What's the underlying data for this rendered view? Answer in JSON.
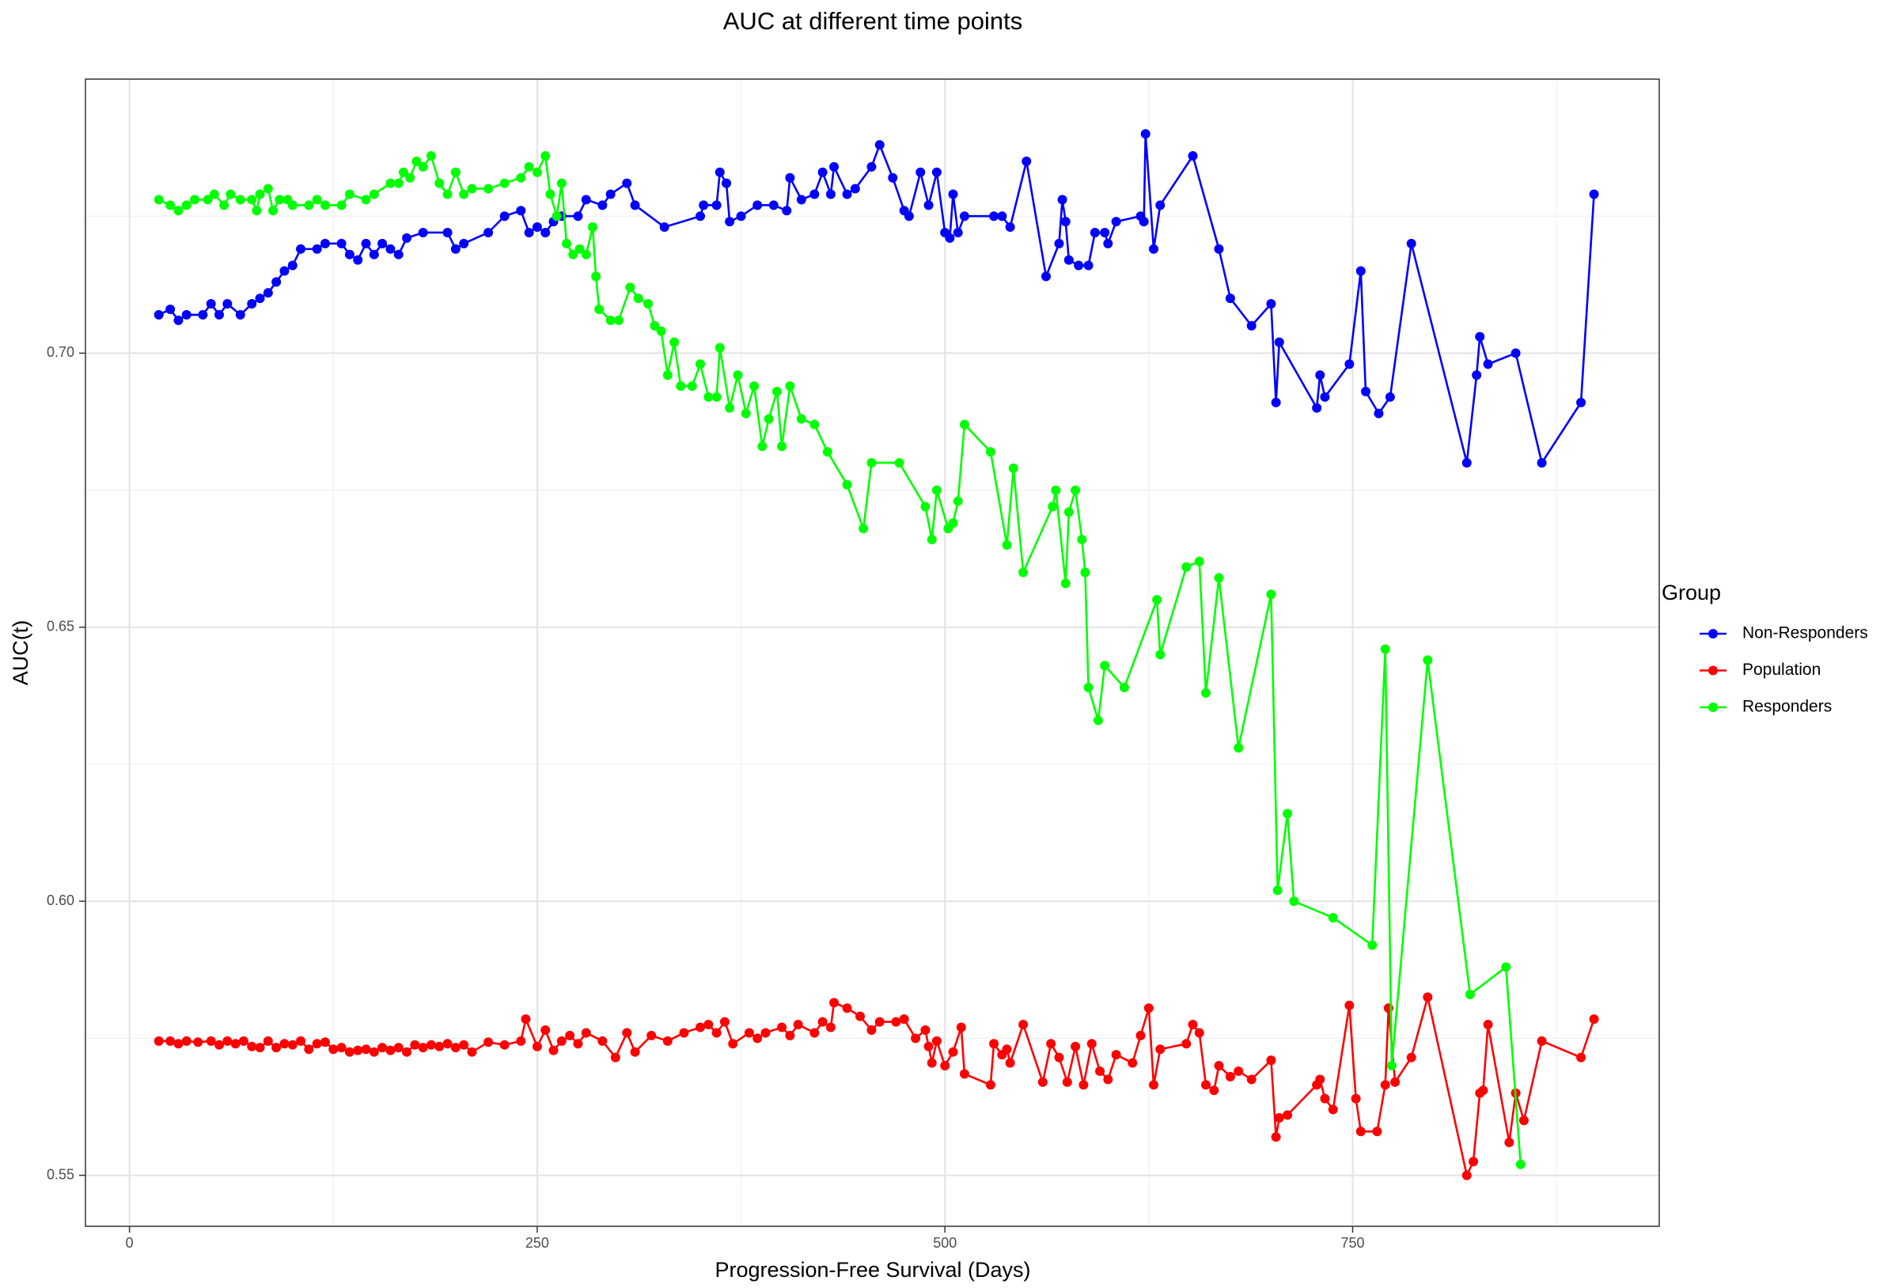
{
  "chart_data": {
    "type": "line",
    "title": "AUC at different time points",
    "xlabel": "Progression-Free Survival (Days)",
    "ylabel": "AUC(t)",
    "legend_title": "Group",
    "legend": "right",
    "grid": true,
    "markers": true,
    "xlim": [
      -27,
      938
    ],
    "ylim": [
      0.5407,
      0.75
    ],
    "xticks": [
      0,
      250,
      500,
      750
    ],
    "yticks": [
      0.55,
      {
        "value": 0.6,
        "label": "0.60"
      },
      0.65,
      {
        "value": 0.7,
        "label": "0.70"
      }
    ],
    "xminor": [
      125,
      375,
      625,
      875
    ],
    "yminor": [
      0.575,
      0.625,
      0.675,
      0.725
    ],
    "series": [
      {
        "name": "Non-Responders",
        "color": "#0000ff",
        "x": [
          18,
          25,
          30,
          35,
          45,
          50,
          55,
          60,
          68,
          75,
          80,
          85,
          90,
          95,
          100,
          105,
          115,
          120,
          130,
          135,
          140,
          145,
          150,
          155,
          160,
          165,
          170,
          180,
          195,
          200,
          205,
          220,
          230,
          240,
          245,
          250,
          255,
          260,
          265,
          275,
          280,
          290,
          295,
          305,
          310,
          328,
          350,
          352,
          360,
          362,
          366,
          368,
          375,
          385,
          395,
          403,
          405,
          412,
          420,
          425,
          430,
          432,
          440,
          445,
          455,
          460,
          468,
          475,
          478,
          485,
          490,
          495,
          500,
          503,
          505,
          508,
          512,
          530,
          535,
          540,
          550,
          562,
          570,
          572,
          574,
          576,
          582,
          588,
          592,
          598,
          600,
          605,
          620,
          622,
          623,
          628,
          632,
          652,
          668,
          675,
          688,
          700,
          703,
          705,
          728,
          730,
          733,
          748,
          755,
          758,
          766,
          773,
          786,
          820,
          826,
          828,
          833,
          850,
          866,
          890,
          898
        ],
        "values": [
          0.707,
          0.708,
          0.706,
          0.707,
          0.707,
          0.709,
          0.707,
          0.709,
          0.707,
          0.709,
          0.71,
          0.711,
          0.713,
          0.715,
          0.716,
          0.719,
          0.719,
          0.72,
          0.72,
          0.718,
          0.717,
          0.72,
          0.718,
          0.72,
          0.719,
          0.718,
          0.721,
          0.722,
          0.722,
          0.719,
          0.72,
          0.722,
          0.725,
          0.726,
          0.722,
          0.723,
          0.722,
          0.724,
          0.725,
          0.725,
          0.728,
          0.727,
          0.729,
          0.731,
          0.727,
          0.723,
          0.725,
          0.727,
          0.727,
          0.733,
          0.731,
          0.724,
          0.725,
          0.727,
          0.727,
          0.726,
          0.732,
          0.728,
          0.729,
          0.733,
          0.729,
          0.734,
          0.729,
          0.73,
          0.734,
          0.738,
          0.732,
          0.726,
          0.725,
          0.733,
          0.727,
          0.733,
          0.722,
          0.721,
          0.729,
          0.722,
          0.725,
          0.725,
          0.725,
          0.723,
          0.735,
          0.714,
          0.72,
          0.728,
          0.724,
          0.717,
          0.716,
          0.716,
          0.722,
          0.722,
          0.72,
          0.724,
          0.725,
          0.724,
          0.74,
          0.719,
          0.727,
          0.736,
          0.719,
          0.71,
          0.705,
          0.709,
          0.691,
          0.702,
          0.69,
          0.696,
          0.692,
          0.698,
          0.715,
          0.693,
          0.689,
          0.692,
          0.72,
          0.68,
          0.696,
          0.703,
          0.698,
          0.7,
          0.68,
          0.691,
          0.729
        ]
      },
      {
        "name": "Population",
        "color": "#ff0000",
        "x": [
          18,
          25,
          30,
          35,
          42,
          50,
          55,
          60,
          65,
          70,
          75,
          80,
          85,
          90,
          95,
          100,
          105,
          110,
          115,
          120,
          125,
          130,
          135,
          140,
          145,
          150,
          155,
          160,
          165,
          170,
          175,
          180,
          185,
          190,
          195,
          200,
          205,
          210,
          220,
          230,
          240,
          243,
          250,
          255,
          260,
          265,
          270,
          275,
          280,
          290,
          298,
          305,
          310,
          320,
          330,
          340,
          350,
          355,
          360,
          365,
          370,
          380,
          385,
          390,
          400,
          405,
          410,
          420,
          425,
          430,
          432,
          440,
          448,
          455,
          460,
          470,
          475,
          482,
          488,
          490,
          492,
          495,
          500,
          505,
          510,
          512,
          528,
          530,
          535,
          538,
          540,
          548,
          560,
          565,
          570,
          575,
          580,
          585,
          590,
          595,
          600,
          605,
          615,
          620,
          625,
          628,
          632,
          648,
          652,
          656,
          660,
          665,
          668,
          675,
          680,
          688,
          700,
          703,
          705,
          710,
          728,
          730,
          733,
          738,
          748,
          752,
          755,
          765,
          770,
          772,
          776,
          786,
          796,
          820,
          824,
          828,
          830,
          833,
          846,
          850,
          855,
          866,
          890,
          898
        ],
        "values": [
          0.5745,
          0.5745,
          0.574,
          0.5745,
          0.5743,
          0.5745,
          0.5738,
          0.5745,
          0.574,
          0.5745,
          0.5735,
          0.5733,
          0.5745,
          0.5733,
          0.574,
          0.5738,
          0.5745,
          0.573,
          0.574,
          0.5743,
          0.573,
          0.5733,
          0.5725,
          0.5728,
          0.573,
          0.5725,
          0.5733,
          0.5728,
          0.5733,
          0.5725,
          0.5738,
          0.5733,
          0.5738,
          0.5735,
          0.574,
          0.5733,
          0.5738,
          0.5725,
          0.5743,
          0.5738,
          0.5745,
          0.5785,
          0.5735,
          0.5765,
          0.5728,
          0.5745,
          0.5755,
          0.574,
          0.576,
          0.5745,
          0.5715,
          0.576,
          0.5725,
          0.5755,
          0.5745,
          0.576,
          0.577,
          0.5775,
          0.576,
          0.578,
          0.574,
          0.576,
          0.575,
          0.576,
          0.577,
          0.5755,
          0.5775,
          0.576,
          0.578,
          0.577,
          0.5815,
          0.5805,
          0.579,
          0.5765,
          0.578,
          0.578,
          0.5785,
          0.575,
          0.5765,
          0.5735,
          0.5705,
          0.5745,
          0.57,
          0.5725,
          0.577,
          0.5685,
          0.5665,
          0.574,
          0.572,
          0.573,
          0.5705,
          0.5775,
          0.567,
          0.574,
          0.5715,
          0.567,
          0.5735,
          0.5665,
          0.574,
          0.569,
          0.5675,
          0.572,
          0.5705,
          0.5755,
          0.5805,
          0.5665,
          0.573,
          0.574,
          0.5775,
          0.576,
          0.5665,
          0.5655,
          0.57,
          0.568,
          0.569,
          0.5675,
          0.571,
          0.557,
          0.5605,
          0.561,
          0.5665,
          0.5675,
          0.564,
          0.562,
          0.581,
          0.564,
          0.558,
          0.558,
          0.5665,
          0.5805,
          0.567,
          0.5715,
          0.5825,
          0.55,
          0.5525,
          0.565,
          0.5655,
          0.5775,
          0.556,
          0.565,
          0.56,
          0.5745,
          0.5715,
          0.5785
        ]
      },
      {
        "name": "Responders",
        "color": "#00ff00",
        "x": [
          18,
          25,
          30,
          35,
          40,
          48,
          52,
          58,
          62,
          68,
          75,
          78,
          80,
          85,
          88,
          92,
          97,
          100,
          110,
          115,
          120,
          130,
          135,
          145,
          150,
          160,
          165,
          168,
          172,
          176,
          180,
          185,
          190,
          195,
          200,
          205,
          210,
          220,
          230,
          240,
          245,
          250,
          255,
          258,
          262,
          265,
          268,
          272,
          276,
          280,
          284,
          286,
          288,
          295,
          300,
          307,
          312,
          318,
          322,
          326,
          330,
          334,
          338,
          345,
          350,
          355,
          360,
          362,
          368,
          373,
          378,
          383,
          388,
          392,
          397,
          400,
          405,
          412,
          420,
          428,
          440,
          450,
          455,
          472,
          488,
          492,
          495,
          502,
          505,
          508,
          512,
          528,
          538,
          542,
          548,
          566,
          568,
          574,
          576,
          580,
          584,
          586,
          588,
          594,
          598,
          610,
          630,
          632,
          648,
          656,
          660,
          668,
          680,
          700,
          704,
          710,
          714,
          738,
          762,
          770,
          774,
          796,
          822,
          844,
          853
        ],
        "values": [
          0.728,
          0.727,
          0.726,
          0.727,
          0.728,
          0.728,
          0.729,
          0.727,
          0.729,
          0.728,
          0.728,
          0.726,
          0.729,
          0.73,
          0.726,
          0.728,
          0.728,
          0.727,
          0.727,
          0.728,
          0.727,
          0.727,
          0.729,
          0.728,
          0.729,
          0.731,
          0.731,
          0.733,
          0.732,
          0.735,
          0.734,
          0.736,
          0.731,
          0.729,
          0.733,
          0.729,
          0.73,
          0.73,
          0.731,
          0.732,
          0.734,
          0.733,
          0.736,
          0.729,
          0.725,
          0.731,
          0.72,
          0.718,
          0.719,
          0.718,
          0.723,
          0.714,
          0.708,
          0.706,
          0.706,
          0.712,
          0.71,
          0.709,
          0.705,
          0.704,
          0.696,
          0.702,
          0.694,
          0.694,
          0.698,
          0.692,
          0.692,
          0.701,
          0.69,
          0.696,
          0.689,
          0.694,
          0.683,
          0.688,
          0.693,
          0.683,
          0.694,
          0.688,
          0.687,
          0.682,
          0.676,
          0.668,
          0.68,
          0.68,
          0.672,
          0.666,
          0.675,
          0.668,
          0.669,
          0.673,
          0.687,
          0.682,
          0.665,
          0.679,
          0.66,
          0.672,
          0.675,
          0.658,
          0.671,
          0.675,
          0.666,
          0.66,
          0.639,
          0.633,
          0.643,
          0.639,
          0.655,
          0.645,
          0.661,
          0.662,
          0.638,
          0.659,
          0.628,
          0.656,
          0.602,
          0.616,
          0.6,
          0.597,
          0.592,
          0.646,
          0.57,
          0.644,
          0.583,
          0.588,
          0.552
        ]
      }
    ]
  }
}
